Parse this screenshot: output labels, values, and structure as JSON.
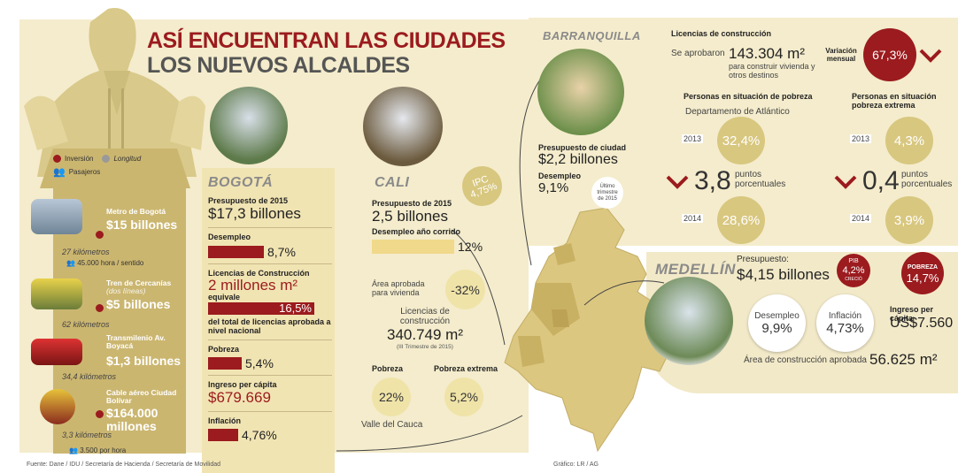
{
  "title": {
    "line1": "ASÍ ENCUENTRAN LAS CIUDADES",
    "line2": "LOS NUEVOS ALCALDES"
  },
  "legend": {
    "inversion": "Inversión",
    "longitud": "Longitud",
    "pasajeros": "Pasajeros"
  },
  "transit": [
    {
      "name": "Metro de Bogotá",
      "value": "$15 billones",
      "km": "27 kilómetros",
      "pasajeros": "45.000 hora / sentido"
    },
    {
      "name": "Tren de Cercanías",
      "note": "(dos líneas)",
      "value": "$5 billones",
      "km": "62 kilómetros"
    },
    {
      "name": "Transmilenio Av. Boyacá",
      "value": "$1,3 billones",
      "km": "34,4 kilómetros"
    },
    {
      "name": "Cable aéreo Ciudad Bolívar",
      "value": "$164.000 millones",
      "km": "3,3 kilómetros",
      "pasajeros": "3.500 por hora"
    }
  ],
  "source": "Fuente: Dane / IDU / Secretaría de Hacienda / Secretaría de Movilidad",
  "credit": "Gráfico: LR / AG",
  "bogota": {
    "name": "BOGOTÁ",
    "presupuesto_label": "Presupuesto de 2015",
    "presupuesto": "$17,3 billones",
    "desempleo_label": "Desempleo",
    "desempleo": "8,7%",
    "licencias_label": "Licencias de Construcción",
    "licencias": "2 millones m²",
    "equivale": "equivale",
    "pct": "16,5%",
    "pct_note": "del total de licencias aprobada a nivel nacional",
    "pobreza_label": "Pobreza",
    "pobreza": "5,4%",
    "ingreso_label": "Ingreso per cápita",
    "ingreso": "$679.669",
    "inflacion_label": "Inflación",
    "inflacion": "4,76%"
  },
  "cali": {
    "name": "CALI",
    "ipc_label": "IPC",
    "ipc": "4,75%",
    "presupuesto_label": "Presupuesto de 2015",
    "presupuesto": "2,5 billones",
    "desempleo_label": "Desempleo año corrido",
    "desempleo": "12%",
    "area_label": "Área aprobada para vivienda",
    "area": "-32%",
    "licencias_label": "Licencias de construcción",
    "licencias": "340.749 m²",
    "licencias_note": "(III Trimestre de 2015)",
    "pobreza_label": "Pobreza",
    "pobreza": "22%",
    "pobreza_ext_label": "Pobreza extrema",
    "pobreza_ext": "5,2%",
    "region": "Valle del Cauca"
  },
  "barranquilla": {
    "name": "BARRANQUILLA",
    "presupuesto_label": "Presupuesto de ciudad",
    "presupuesto": "$2,2 billones",
    "desempleo_label": "Desempleo",
    "desempleo": "9,1%",
    "trimestre_note": "Último trimestre de 2015",
    "licencias_label": "Licencias de construcción",
    "se_aprobaron": "Se aprobaron",
    "licencias": "143.304 m²",
    "licencias_note": "para construir vivienda y otros destinos",
    "variacion_label": "Variación mensual",
    "variacion": "67,3%",
    "pobreza_label": "Personas en situación de pobreza",
    "depto": "Departamento de Atlántico",
    "pobreza_ext_label": "Personas en situación pobreza extrema",
    "y2013": "2013",
    "y2014": "2014",
    "pob2013": "32,4%",
    "pob2014": "28,6%",
    "pob_diff": "3,8",
    "diff_unit": "puntos porcentuales",
    "ext2013": "4,3%",
    "ext2014": "3,9%",
    "ext_diff": "0,4"
  },
  "medellin": {
    "name": "MEDELLÍN",
    "presupuesto_label": "Presupuesto:",
    "presupuesto": "$4,15 billones",
    "pib_label": "PIB",
    "pib": "4,2%",
    "pib_note": "CRECIÓ",
    "pobreza_label": "POBREZA",
    "pobreza": "14,7%",
    "desempleo_label": "Desempleo",
    "desempleo": "9,9%",
    "inflacion_label": "Inflación",
    "inflacion": "4,73%",
    "ingreso_label": "Ingreso per cápita",
    "ingreso": "US$7.560",
    "area_label": "Área de construcción aprobada",
    "area": "56.625 m²"
  }
}
